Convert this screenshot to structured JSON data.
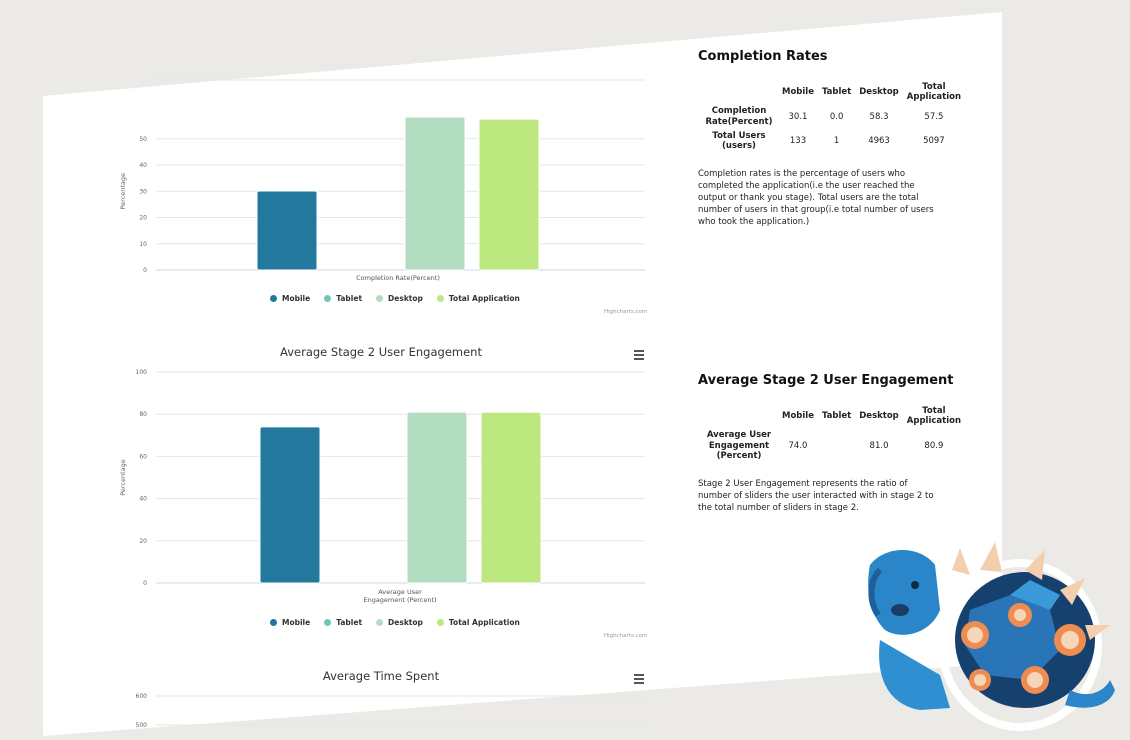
{
  "colors": {
    "mobile": "#23799d",
    "tablet": "#6cc7b8",
    "desktop": "#b3ddc1",
    "total": "#bde87f",
    "page": "#ffffff",
    "background": "#ebeae6"
  },
  "legend": [
    "Mobile",
    "Tablet",
    "Desktop",
    "Total Application"
  ],
  "credit": "Highcharts.com",
  "chart_data": [
    {
      "type": "bar",
      "title": "",
      "ylabel": "Percentage",
      "xlabel": "Completion Rate(Percent)",
      "ylim": [
        0,
        60
      ],
      "yticks": [
        0,
        10,
        20,
        30,
        40,
        50
      ],
      "series": [
        {
          "name": "Mobile",
          "values": [
            30.1
          ]
        },
        {
          "name": "Tablet",
          "values": [
            0.0
          ]
        },
        {
          "name": "Desktop",
          "values": [
            58.3
          ]
        },
        {
          "name": "Total Application",
          "values": [
            57.5
          ]
        }
      ]
    },
    {
      "type": "bar",
      "title": "Average Stage 2 User Engagement",
      "ylabel": "Percentage",
      "xlabel": [
        "Average User",
        "Engagement (Percent)"
      ],
      "ylim": [
        0,
        100
      ],
      "yticks": [
        0,
        20,
        40,
        60,
        80,
        100
      ],
      "series": [
        {
          "name": "Mobile",
          "values": [
            74.0
          ]
        },
        {
          "name": "Tablet",
          "values": [
            0
          ]
        },
        {
          "name": "Desktop",
          "values": [
            81.0
          ]
        },
        {
          "name": "Total Application",
          "values": [
            80.9
          ]
        }
      ]
    },
    {
      "type": "bar",
      "title": "Average Time Spent",
      "yticks_visible": [
        "600",
        "500"
      ]
    }
  ],
  "completion": {
    "title": "Completion Rates",
    "headers": [
      "",
      "Mobile",
      "Tablet",
      "Desktop",
      "Total Application"
    ],
    "rows": [
      {
        "label": "Completion Rate(Percent)",
        "values": [
          "30.1",
          "0.0",
          "58.3",
          "57.5"
        ]
      },
      {
        "label": "Total Users (users)",
        "values": [
          "133",
          "1",
          "4963",
          "5097"
        ]
      }
    ],
    "note": "Completion rates is the percentage of users who completed the application(i.e the user reached the output or thank you stage). Total users are the total number of users in that group(i.e total number of users who took the application.)"
  },
  "engagement": {
    "title": "Average Stage 2 User Engagement",
    "headers": [
      "",
      "Mobile",
      "Tablet",
      "Desktop",
      "Total Application"
    ],
    "rows": [
      {
        "label": "Average User Engagement (Percent)",
        "values": [
          "74.0",
          "",
          "81.0",
          "80.9"
        ]
      }
    ],
    "note": "Stage 2 User Engagement represents the ratio of number of sliders the user interacted with in stage 2 to the total number of sliders in stage 2."
  }
}
